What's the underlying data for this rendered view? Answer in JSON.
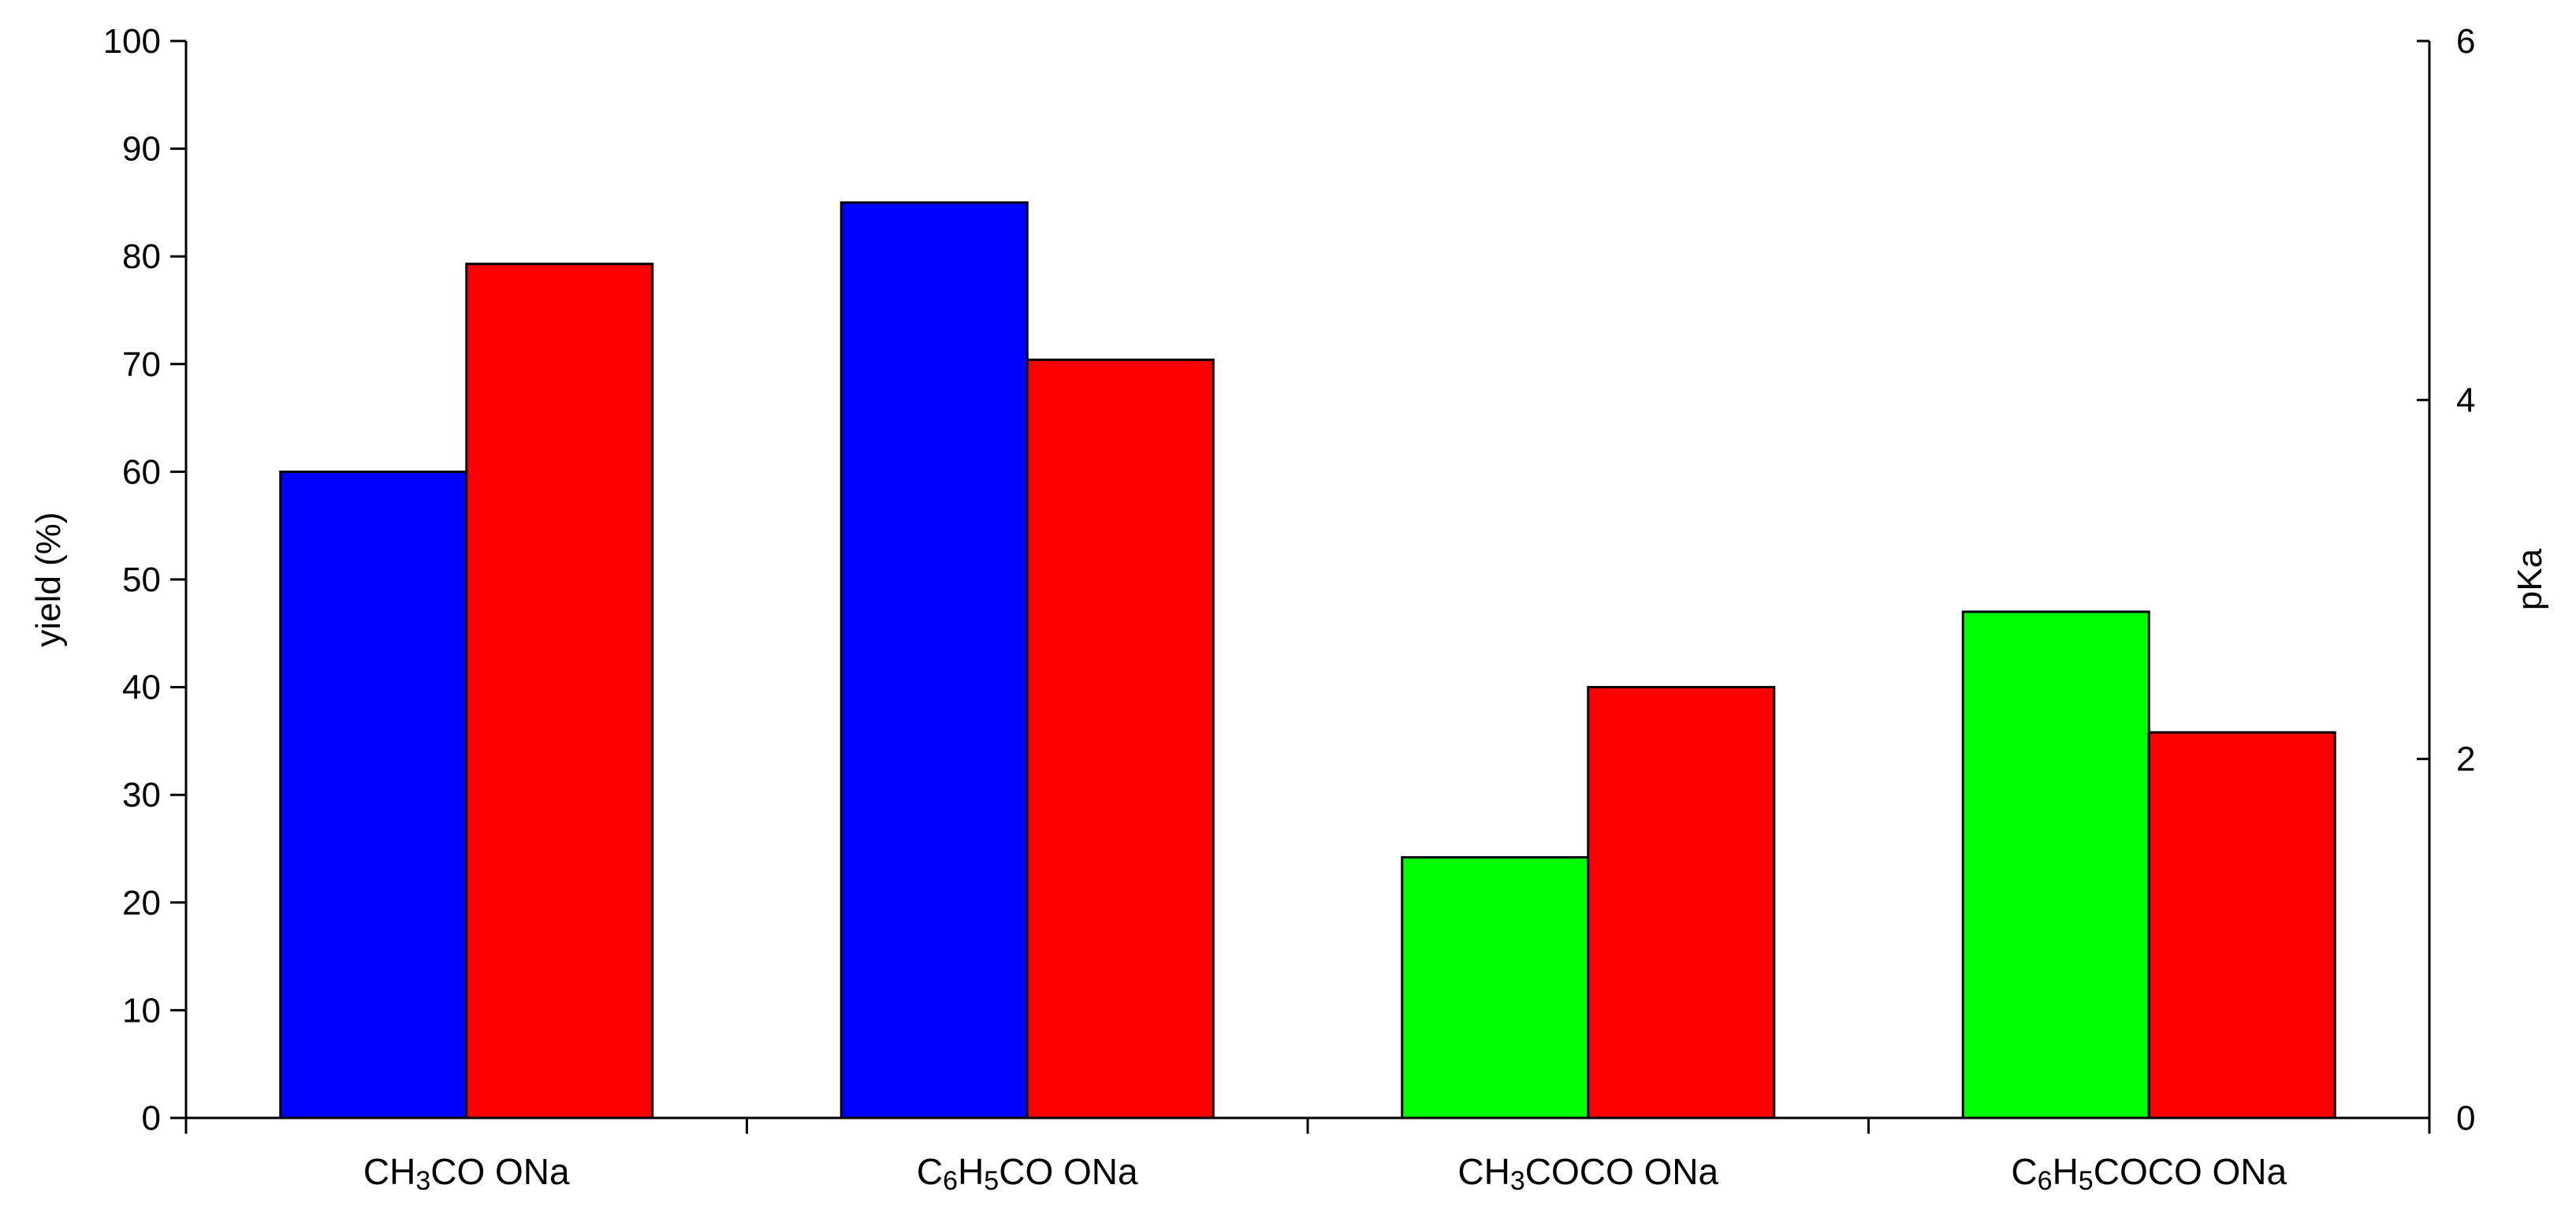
{
  "chart_data": {
    "type": "bar",
    "categories": [
      {
        "label": "CH3COONa",
        "parts": [
          [
            "CH",
            ""
          ],
          [
            "3",
            "sub"
          ],
          [
            "CO ONa",
            ""
          ]
        ]
      },
      {
        "label": "C6H5COONa",
        "parts": [
          [
            "C",
            ""
          ],
          [
            "6",
            "sub"
          ],
          [
            "H",
            ""
          ],
          [
            "5",
            "sub"
          ],
          [
            "CO ONa",
            ""
          ]
        ]
      },
      {
        "label": "CH3COCOONa",
        "parts": [
          [
            "CH",
            ""
          ],
          [
            "3",
            "sub"
          ],
          [
            "COCO ONa",
            ""
          ]
        ]
      },
      {
        "label": "C6H5COCOONa",
        "parts": [
          [
            "C",
            ""
          ],
          [
            "6",
            "sub"
          ],
          [
            "H",
            ""
          ],
          [
            "5",
            "sub"
          ],
          [
            "COCO ONa",
            ""
          ]
        ]
      }
    ],
    "bars": [
      {
        "category": 0,
        "slot": 0,
        "value": 60,
        "color": "#0000ff"
      },
      {
        "category": 0,
        "slot": 1,
        "value": 79.3,
        "color": "#ff0000"
      },
      {
        "category": 1,
        "slot": 0,
        "value": 85,
        "color": "#0000ff"
      },
      {
        "category": 1,
        "slot": 1,
        "value": 70.4,
        "color": "#ff0000"
      },
      {
        "category": 2,
        "slot": 0,
        "value": 24.2,
        "color": "#00ff00"
      },
      {
        "category": 2,
        "slot": 1,
        "value": 40,
        "color": "#ff0000"
      },
      {
        "category": 3,
        "slot": 0,
        "value": 47,
        "color": "#00ff00"
      },
      {
        "category": 3,
        "slot": 1,
        "value": 35.8,
        "color": "#ff0000"
      }
    ],
    "y_left": {
      "label": "yield (%)",
      "ylim": [
        0,
        100
      ],
      "ticks": [
        "0",
        "10",
        "20",
        "30",
        "40",
        "50",
        "60",
        "70",
        "80",
        "90",
        "100"
      ]
    },
    "y_right": {
      "label": "pKa",
      "ylim": [
        0,
        6
      ],
      "ticks": [
        "0",
        "2",
        "4",
        "6"
      ]
    },
    "grid": false,
    "legend": "none"
  }
}
